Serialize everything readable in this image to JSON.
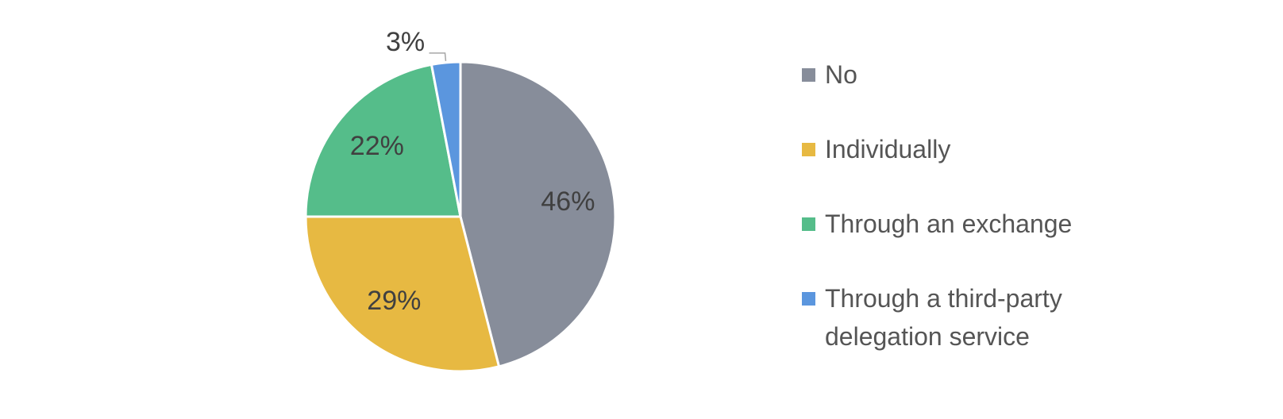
{
  "chart_data": {
    "type": "pie",
    "categories": [
      "No",
      "Individually",
      "Through an exchange",
      "Through a third-party delegation service"
    ],
    "values": [
      46,
      29,
      22,
      3
    ],
    "value_labels": [
      "46%",
      "29%",
      "22%",
      "3%"
    ],
    "colors": [
      "#878d9a",
      "#e7b942",
      "#55bd8a",
      "#5b96de"
    ],
    "legend": "right"
  }
}
